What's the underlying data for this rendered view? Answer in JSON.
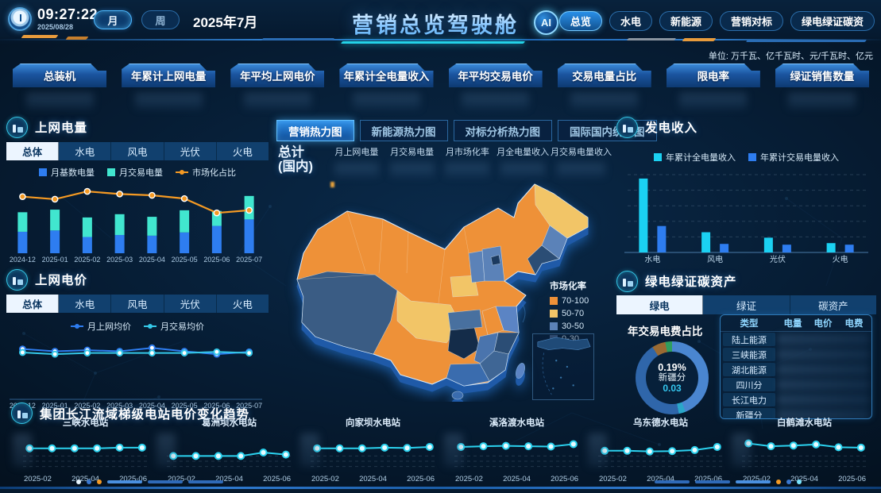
{
  "header": {
    "time": "09:27:22",
    "date": "2025/08/28",
    "period_month": "月",
    "period_week": "周",
    "current_period": "2025年7月",
    "title": "营销总览驾驶舱",
    "ai_badge": "AI",
    "nav_tabs": [
      {
        "label": "总览",
        "active": true
      },
      {
        "label": "水电",
        "active": false
      },
      {
        "label": "新能源",
        "active": false
      },
      {
        "label": "营销对标",
        "active": false
      },
      {
        "label": "绿电绿证碳资",
        "active": false
      }
    ]
  },
  "units_note": "单位: 万千瓦、亿千瓦时、元/千瓦时、亿元",
  "kpis": [
    {
      "label": "总装机"
    },
    {
      "label": "年累计上网电量"
    },
    {
      "label": "年平均上网电价"
    },
    {
      "label": "年累计全电量收入"
    },
    {
      "label": "年平均交易电价"
    },
    {
      "label": "交易电量占比"
    },
    {
      "label": "限电率"
    },
    {
      "label": "绿证销售数量"
    }
  ],
  "left_top_panel": {
    "title": "上网电量",
    "tabs": [
      "总体",
      "水电",
      "风电",
      "光伏",
      "火电"
    ],
    "active_tab": "总体"
  },
  "left_bottom_panel": {
    "title": "上网电价",
    "tabs": [
      "总体",
      "水电",
      "风电",
      "光伏",
      "火电"
    ],
    "active_tab": "总体"
  },
  "center": {
    "tabs": [
      {
        "label": "营销热力图",
        "active": true
      },
      {
        "label": "新能源热力图",
        "active": false
      },
      {
        "label": "对标分析热力图",
        "active": false
      },
      {
        "label": "国际国内统计图",
        "active": false
      }
    ],
    "summary_label_line1": "总计",
    "summary_label_line2": "(国内)",
    "summary_columns": [
      "月上网电量",
      "月交易电量",
      "月市场化率",
      "月全电量收入",
      "月交易电量收入"
    ],
    "map_legend": {
      "title": "市场化率",
      "items": [
        {
          "label": "70-100",
          "color": "#ee9138"
        },
        {
          "label": "50-70",
          "color": "#f2c468"
        },
        {
          "label": "30-50",
          "color": "#5b82b8"
        },
        {
          "label": "0-30",
          "color": "#44628a"
        }
      ]
    }
  },
  "right_top_panel": {
    "title": "发电收入"
  },
  "right_bottom_panel": {
    "title": "绿电绿证碳资产",
    "tabs": [
      "绿电",
      "绿证",
      "碳资产"
    ],
    "active_tab": "绿电",
    "donut_title": "年交易电费占比",
    "table": {
      "columns": [
        "类型",
        "电量",
        "电价",
        "电费"
      ],
      "rows": [
        "陆上能源",
        "三峡能源",
        "湖北能源",
        "四川分",
        "长江电力",
        "新疆分"
      ]
    }
  },
  "bottom_panel": {
    "title": "集团长江流域梯级电站电价变化趋势"
  },
  "chart_data": [
    {
      "id": "grid-power",
      "type": "stacked-bar-line",
      "title": "上网电量",
      "categories": [
        "2024-12",
        "2025-01",
        "2025-02",
        "2025-03",
        "2025-04",
        "2025-05",
        "2025-06",
        "2025-07"
      ],
      "series": [
        {
          "name": "月基数电量",
          "kind": "bar",
          "color": "#2e7df0",
          "values": [
            33,
            35,
            25,
            28,
            27,
            32,
            42,
            52
          ]
        },
        {
          "name": "月交易电量",
          "kind": "bar",
          "color": "#41e6cf",
          "values": [
            30,
            32,
            30,
            32,
            29,
            34,
            23,
            36
          ]
        },
        {
          "name": "市场化占比",
          "kind": "line",
          "color": "#f59a23",
          "values": [
            87,
            83,
            95,
            91,
            89,
            84,
            62,
            66
          ]
        }
      ],
      "ylim": [
        0,
        100
      ],
      "legend_position": "top"
    },
    {
      "id": "grid-price",
      "type": "line",
      "title": "上网电价",
      "categories": [
        "2024-12",
        "2025-01",
        "2025-02",
        "2025-03",
        "2025-04",
        "2025-05",
        "2025-06",
        "2025-07"
      ],
      "series": [
        {
          "name": "月上网均价",
          "color": "#2e7df0",
          "values": [
            88,
            84,
            86,
            84,
            90,
            84,
            79,
            83
          ]
        },
        {
          "name": "月交易均价",
          "color": "#35c8e8",
          "values": [
            82,
            79,
            81,
            81,
            81,
            81,
            83,
            81
          ]
        }
      ],
      "ylim": [
        0,
        100
      ],
      "legend_position": "top"
    },
    {
      "id": "gen-income",
      "type": "grouped-bar",
      "title": "发电收入",
      "categories": [
        "水电",
        "风电",
        "光伏",
        "火电"
      ],
      "series": [
        {
          "name": "年累计全电量收入",
          "color": "#1bd1f2",
          "values": [
            95,
            26,
            19,
            12
          ]
        },
        {
          "name": "年累计交易电量收入",
          "color": "#2e7df0",
          "values": [
            34,
            11,
            10,
            10
          ]
        }
      ],
      "ylim": [
        0,
        100
      ],
      "grid": true,
      "legend_position": "top"
    },
    {
      "id": "fee-donut",
      "type": "pie",
      "title": "年交易电费占比",
      "center": {
        "percent": "0.19%",
        "region": "新疆分",
        "value": "0.03"
      },
      "slices": [
        {
          "color": "#4a86d0",
          "value": 44
        },
        {
          "color": "#2aa7c9",
          "value": 3
        },
        {
          "color": "#2f66aa",
          "value": 44
        },
        {
          "color": "#9a6a33",
          "value": 6
        },
        {
          "color": "#2f9e5f",
          "value": 3
        }
      ]
    },
    {
      "id": "st-sanxia",
      "type": "mini-line",
      "title": "三峡水电站",
      "color": "#2bd2ef",
      "categories": [
        "2025-02",
        "2025-03",
        "2025-04",
        "2025-05",
        "2025-06",
        "2025-07"
      ],
      "tick_labels": [
        "2025-02",
        "2025-04",
        "2025-06"
      ],
      "values": [
        62,
        62,
        62,
        62,
        64,
        64
      ],
      "ylim": [
        0,
        100
      ]
    },
    {
      "id": "st-gezhouba",
      "type": "mini-line",
      "title": "葛洲坝水电站",
      "color": "#2bd2ef",
      "categories": [
        "2025-02",
        "2025-03",
        "2025-04",
        "2025-05",
        "2025-06",
        "2025-07"
      ],
      "tick_labels": [
        "2025-02",
        "2025-04",
        "2025-06"
      ],
      "values": [
        40,
        40,
        40,
        40,
        50,
        44
      ],
      "ylim": [
        0,
        100
      ]
    },
    {
      "id": "st-xiangjiaba",
      "type": "mini-line",
      "title": "向家坝水电站",
      "color": "#2bd2ef",
      "categories": [
        "2025-02",
        "2025-03",
        "2025-04",
        "2025-05",
        "2025-06",
        "2025-07"
      ],
      "tick_labels": [
        "2025-02",
        "2025-04",
        "2025-06"
      ],
      "values": [
        62,
        62,
        62,
        64,
        63,
        66
      ],
      "ylim": [
        0,
        100
      ]
    },
    {
      "id": "st-xiluodu",
      "type": "mini-line",
      "title": "溪洛渡水电站",
      "color": "#2bd2ef",
      "categories": [
        "2025-02",
        "2025-03",
        "2025-04",
        "2025-05",
        "2025-06",
        "2025-07"
      ],
      "tick_labels": [
        "2025-02",
        "2025-04",
        "2025-06"
      ],
      "values": [
        66,
        68,
        69,
        68,
        67,
        74
      ],
      "ylim": [
        0,
        100
      ]
    },
    {
      "id": "st-wudongde",
      "type": "mini-line",
      "title": "乌东德水电站",
      "color": "#2bd2ef",
      "categories": [
        "2025-02",
        "2025-03",
        "2025-04",
        "2025-05",
        "2025-06",
        "2025-07"
      ],
      "tick_labels": [
        "2025-02",
        "2025-04",
        "2025-06"
      ],
      "values": [
        55,
        55,
        53,
        54,
        57,
        66
      ],
      "ylim": [
        0,
        100
      ]
    },
    {
      "id": "st-baihetan",
      "type": "mini-line",
      "title": "白鹤滩水电站",
      "color": "#2bd2ef",
      "categories": [
        "2025-02",
        "2025-03",
        "2025-04",
        "2025-05",
        "2025-06",
        "2025-07"
      ],
      "tick_labels": [
        "2025-02",
        "2025-04",
        "2025-06"
      ],
      "values": [
        76,
        68,
        70,
        73,
        65,
        64
      ],
      "ylim": [
        0,
        100
      ]
    }
  ]
}
